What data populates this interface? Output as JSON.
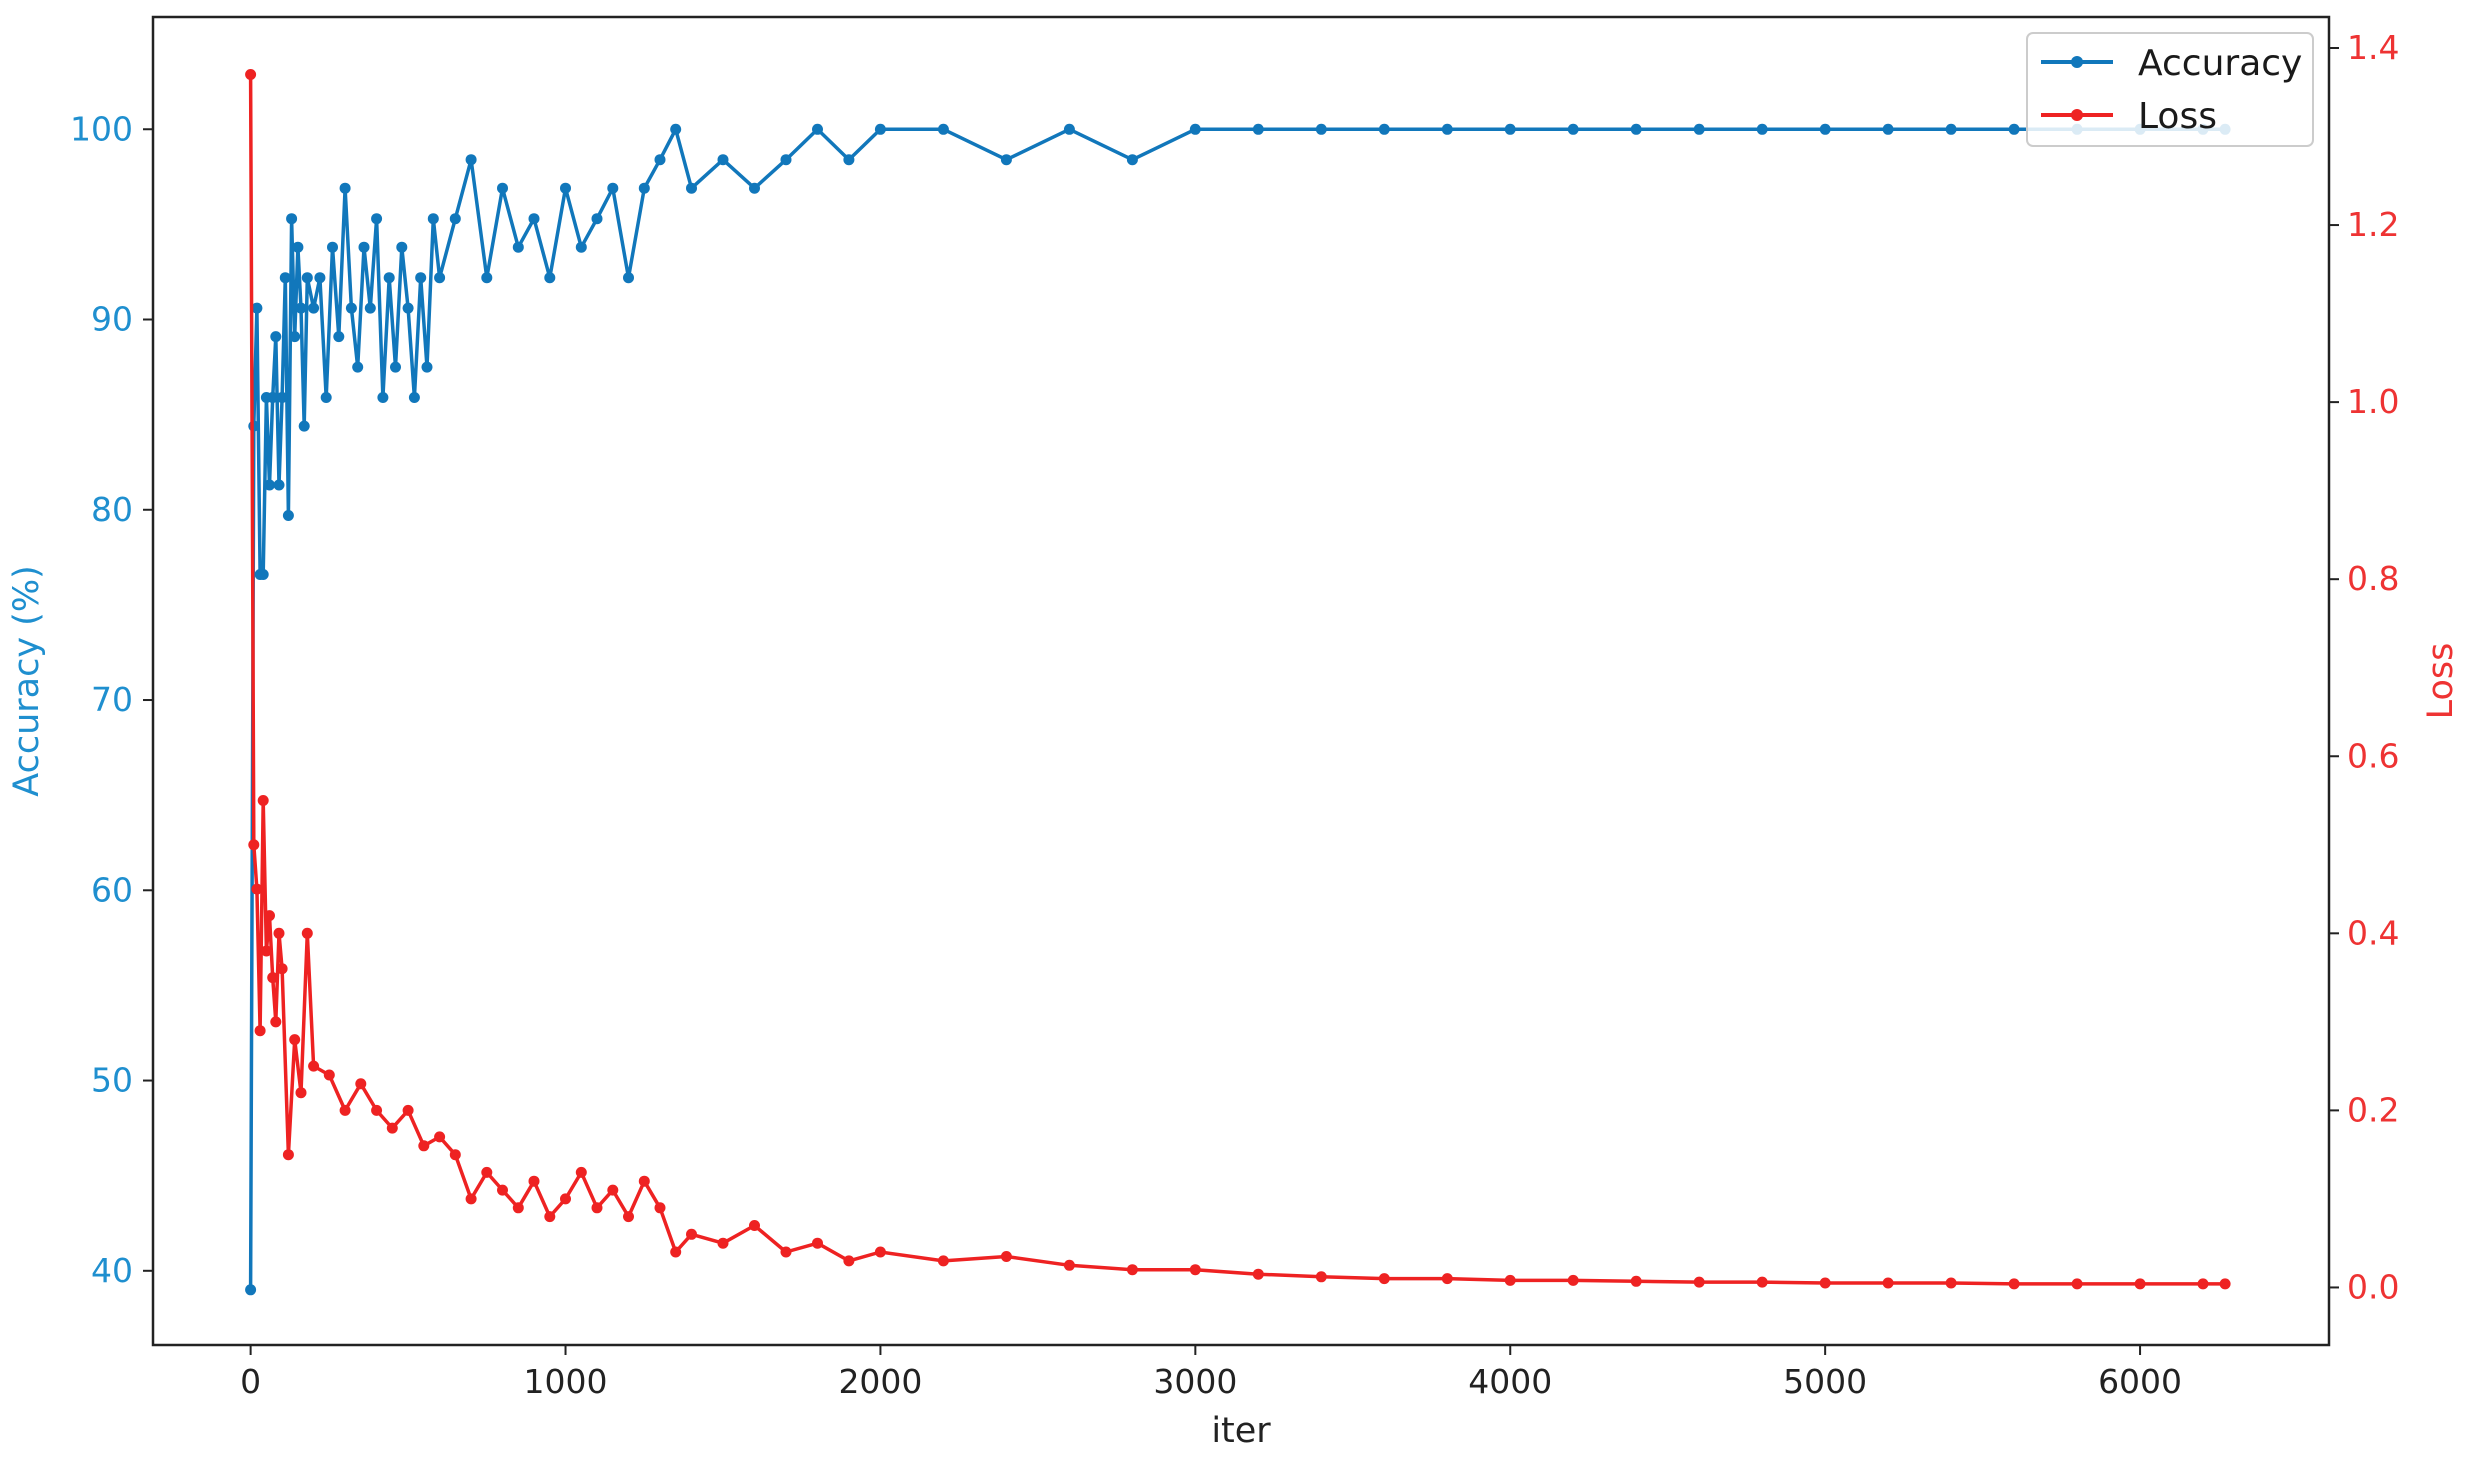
{
  "chart_data": {
    "type": "line",
    "title": "",
    "xlabel": "iter",
    "ylabel_left": "Accuracy (%)",
    "ylabel_right": "Loss",
    "xlim": [
      -310,
      6600
    ],
    "ylim_left": [
      36.1,
      105.9
    ],
    "ylim_right": [
      -0.065,
      1.435
    ],
    "x_ticks": [
      0,
      1000,
      2000,
      3000,
      4000,
      5000,
      6000
    ],
    "y_left_ticks": [
      40,
      50,
      60,
      70,
      80,
      90,
      100
    ],
    "y_right_ticks": [
      0.0,
      0.2,
      0.4,
      0.6,
      0.8,
      1.0,
      1.2,
      1.4
    ],
    "y_right_tick_labels": [
      "0.0",
      "0.2",
      "0.4",
      "0.6",
      "0.8",
      "1.0",
      "1.2",
      "1.4"
    ],
    "grid": false,
    "legend_position": "top-right",
    "colors": {
      "accuracy": "#1177bb",
      "loss": "#ee2222",
      "left_axis_text": "#1f8fcf",
      "right_axis_text": "#ee3333"
    },
    "series": [
      {
        "name": "Accuracy",
        "axis": "left",
        "x": [
          0,
          10,
          20,
          30,
          40,
          50,
          60,
          70,
          80,
          90,
          100,
          110,
          120,
          130,
          140,
          150,
          160,
          170,
          180,
          200,
          220,
          240,
          260,
          280,
          300,
          320,
          340,
          360,
          380,
          400,
          420,
          440,
          460,
          480,
          500,
          520,
          540,
          560,
          580,
          600,
          650,
          700,
          750,
          800,
          850,
          900,
          950,
          1000,
          1050,
          1100,
          1150,
          1200,
          1250,
          1300,
          1350,
          1400,
          1500,
          1600,
          1700,
          1800,
          1900,
          2000,
          2200,
          2400,
          2600,
          2800,
          3000,
          3200,
          3400,
          3600,
          3800,
          4000,
          4200,
          4400,
          4600,
          4800,
          5000,
          5200,
          5400,
          5600,
          5800,
          6000,
          6200,
          6270
        ],
        "y": [
          39,
          84.4,
          90.6,
          76.6,
          76.6,
          85.9,
          81.3,
          85.9,
          89.1,
          81.3,
          85.9,
          92.2,
          79.7,
          95.3,
          89.1,
          93.8,
          90.6,
          84.4,
          92.2,
          90.6,
          92.2,
          85.9,
          93.8,
          89.1,
          96.9,
          90.6,
          87.5,
          93.8,
          90.6,
          95.3,
          85.9,
          92.2,
          87.5,
          93.8,
          90.6,
          85.9,
          92.2,
          87.5,
          95.3,
          92.2,
          95.3,
          98.4,
          92.2,
          96.9,
          93.8,
          95.3,
          92.2,
          96.9,
          93.8,
          95.3,
          96.9,
          92.2,
          96.9,
          98.4,
          100,
          96.9,
          98.4,
          96.9,
          98.4,
          100,
          98.4,
          100,
          100,
          98.4,
          100,
          98.4,
          100,
          100,
          100,
          100,
          100,
          100,
          100,
          100,
          100,
          100,
          100,
          100,
          100,
          100,
          100,
          100,
          100,
          100
        ]
      },
      {
        "name": "Loss",
        "axis": "right",
        "x": [
          0,
          10,
          20,
          30,
          40,
          50,
          60,
          70,
          80,
          90,
          100,
          120,
          140,
          160,
          180,
          200,
          250,
          300,
          350,
          400,
          450,
          500,
          550,
          600,
          650,
          700,
          750,
          800,
          850,
          900,
          950,
          1000,
          1050,
          1100,
          1150,
          1200,
          1250,
          1300,
          1350,
          1400,
          1500,
          1600,
          1700,
          1800,
          1900,
          2000,
          2200,
          2400,
          2600,
          2800,
          3000,
          3200,
          3400,
          3600,
          3800,
          4000,
          4200,
          4400,
          4600,
          4800,
          5000,
          5200,
          5400,
          5600,
          5800,
          6000,
          6200,
          6270
        ],
        "y": [
          1.37,
          0.5,
          0.45,
          0.29,
          0.55,
          0.38,
          0.42,
          0.35,
          0.3,
          0.4,
          0.36,
          0.15,
          0.28,
          0.22,
          0.4,
          0.25,
          0.24,
          0.2,
          0.23,
          0.2,
          0.18,
          0.2,
          0.16,
          0.17,
          0.15,
          0.1,
          0.13,
          0.11,
          0.09,
          0.12,
          0.08,
          0.1,
          0.13,
          0.09,
          0.11,
          0.08,
          0.12,
          0.09,
          0.04,
          0.06,
          0.05,
          0.07,
          0.04,
          0.05,
          0.03,
          0.04,
          0.03,
          0.035,
          0.025,
          0.02,
          0.02,
          0.015,
          0.012,
          0.01,
          0.01,
          0.008,
          0.008,
          0.007,
          0.006,
          0.006,
          0.005,
          0.005,
          0.005,
          0.004,
          0.004,
          0.004,
          0.004,
          0.004
        ]
      }
    ]
  }
}
